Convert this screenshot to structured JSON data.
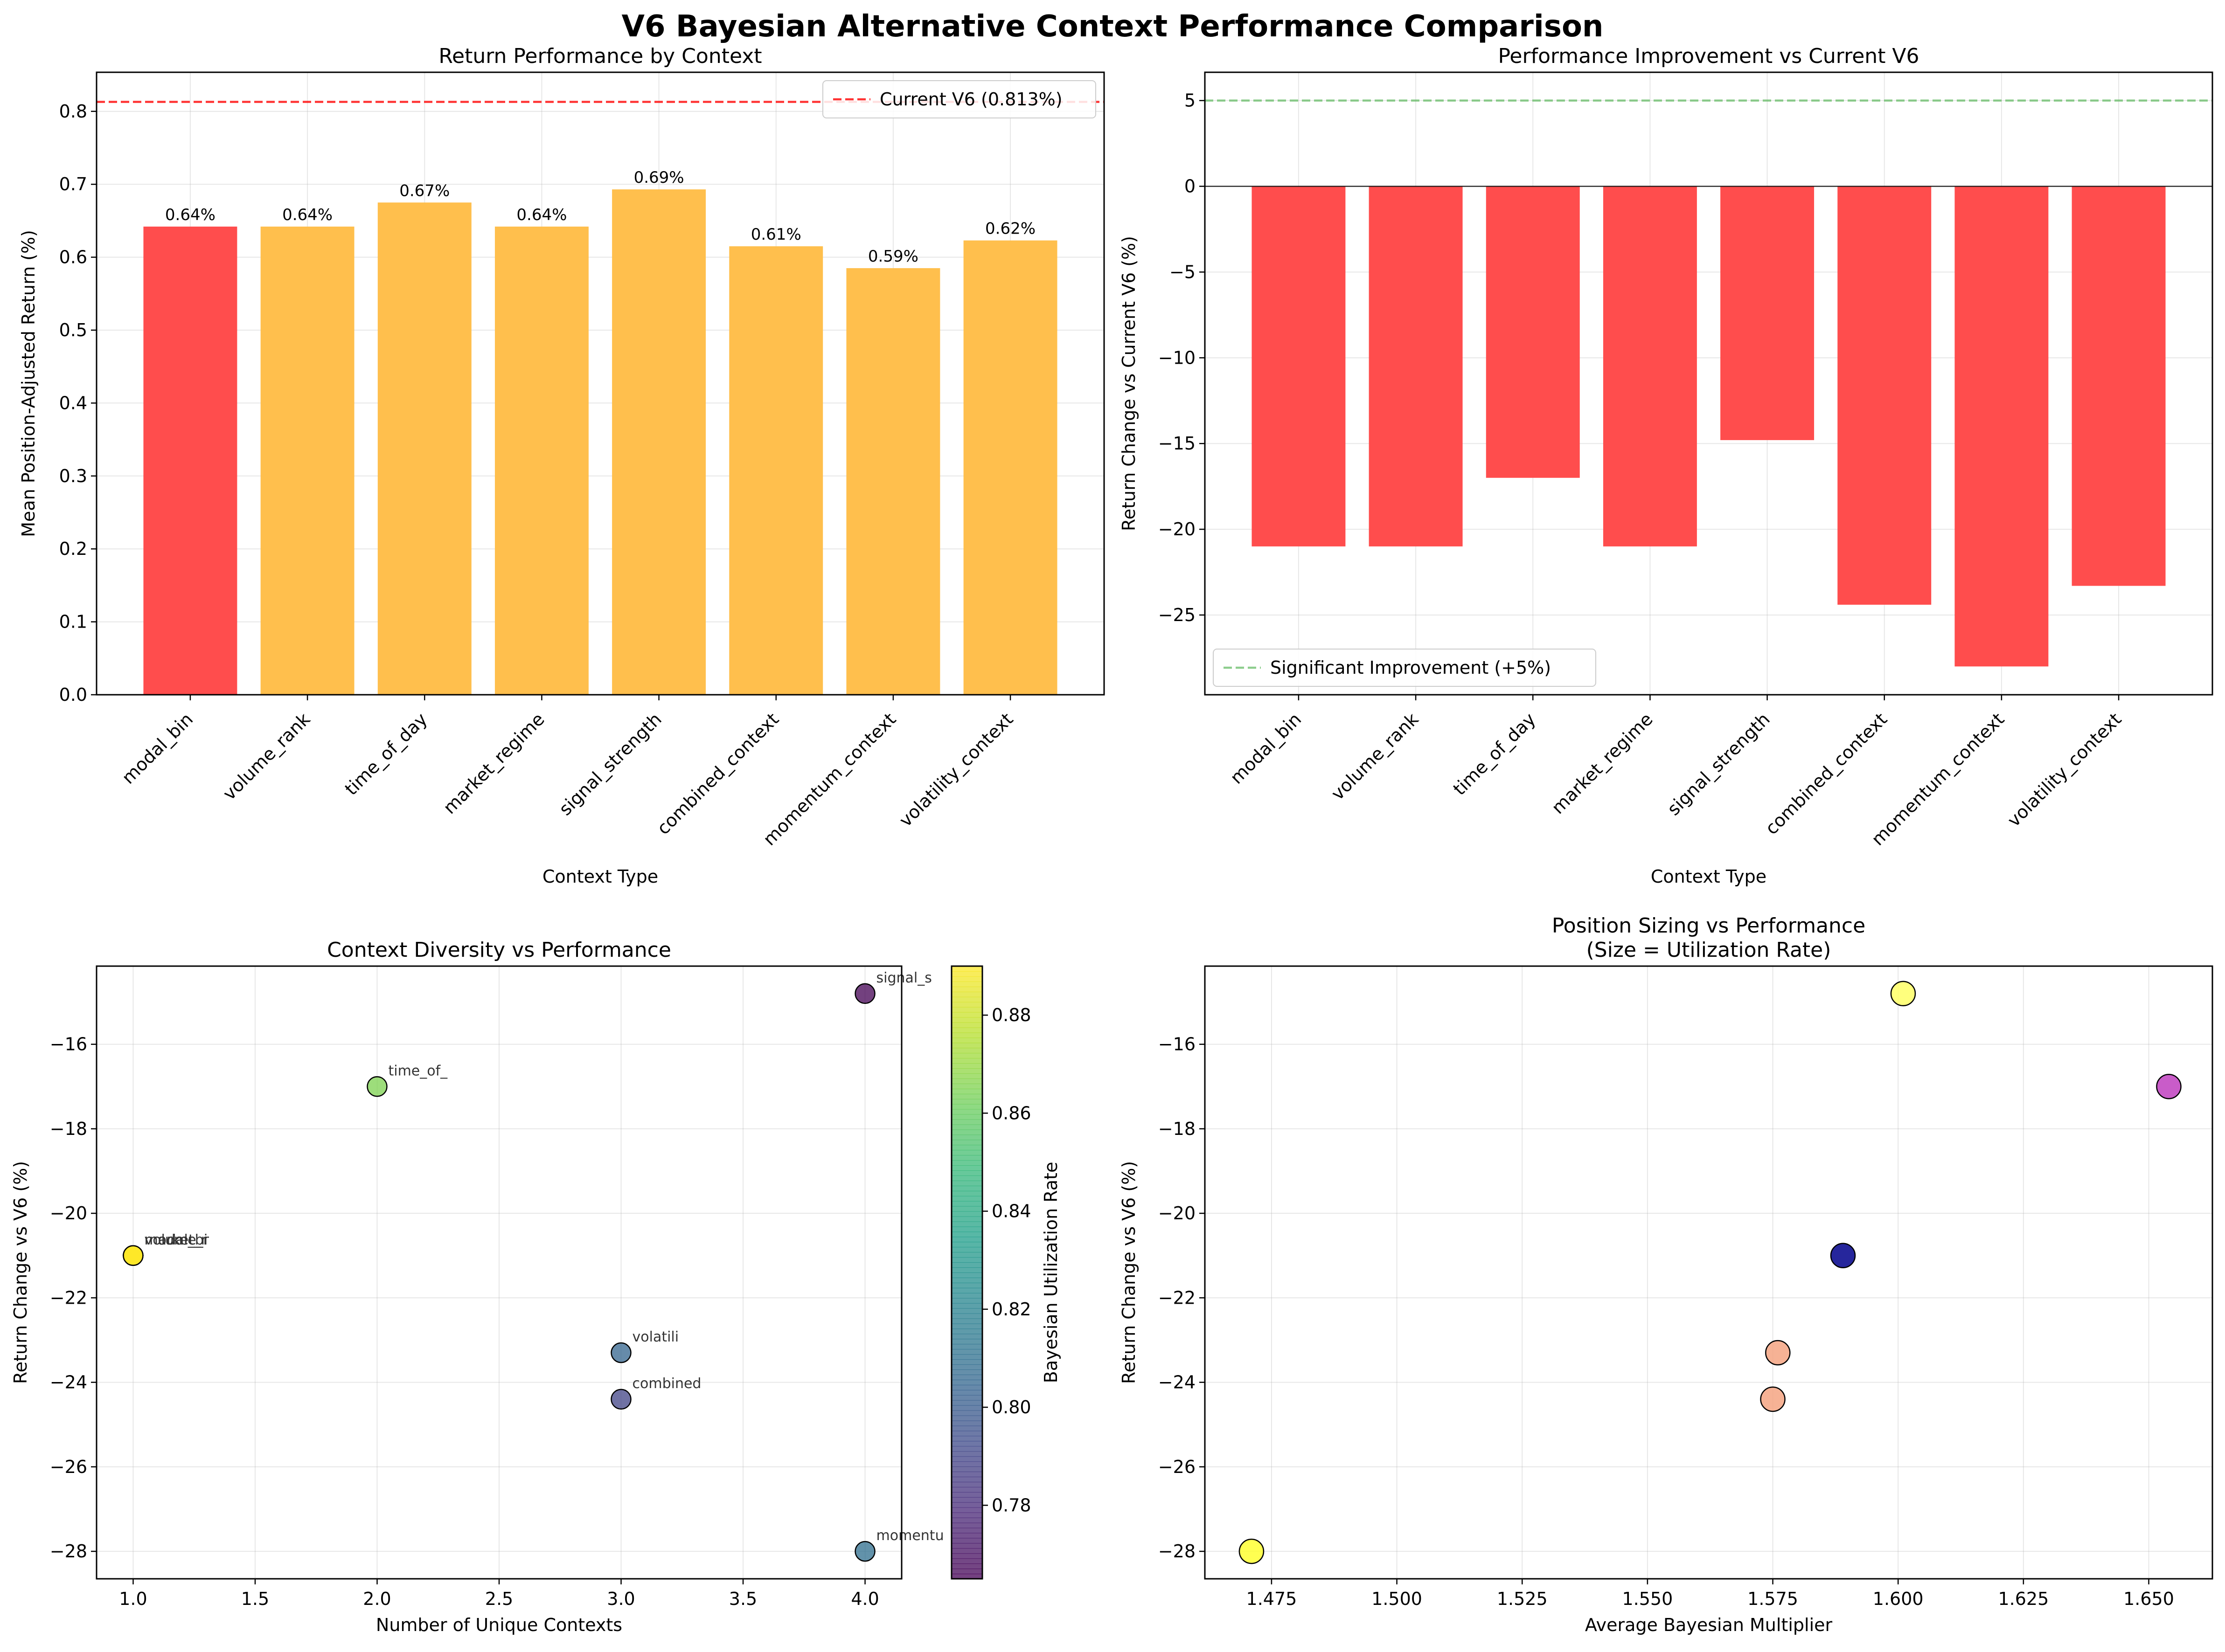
{
  "suptitle": "V6 Bayesian Alternative Context Performance Comparison",
  "colors": {
    "baseline_red": "#ff4d4d",
    "alt_orange": "#ffbf4d",
    "current_line": "#ff0000",
    "improvement_line": "#5cb85c"
  },
  "chart_data": [
    {
      "id": "p1",
      "type": "bar",
      "title": "Return Performance by Context",
      "xlabel": "Context Type",
      "ylabel": "Mean Position-Adjusted Return (%)",
      "categories": [
        "modal_bin",
        "volume_rank",
        "time_of_day",
        "market_regime",
        "signal_strength",
        "combined_context",
        "momentum_context",
        "volatility_context"
      ],
      "values": [
        0.642,
        0.642,
        0.675,
        0.642,
        0.693,
        0.615,
        0.585,
        0.623
      ],
      "value_labels": [
        "0.64%",
        "0.64%",
        "0.67%",
        "0.64%",
        "0.69%",
        "0.61%",
        "0.59%",
        "0.62%"
      ],
      "bar_colors": [
        "#ff4d4d",
        "#ffbf4d",
        "#ffbf4d",
        "#ffbf4d",
        "#ffbf4d",
        "#ffbf4d",
        "#ffbf4d",
        "#ffbf4d"
      ],
      "ylim": [
        0,
        0.8536
      ],
      "yticks": [
        0.0,
        0.1,
        0.2,
        0.3,
        0.4,
        0.5,
        0.6,
        0.7,
        0.8
      ],
      "ytick_labels": [
        "0.0",
        "0.1",
        "0.2",
        "0.3",
        "0.4",
        "0.5",
        "0.6",
        "0.7",
        "0.8"
      ],
      "reference_line": {
        "value": 0.813,
        "label": "Current V6 (0.813%)"
      },
      "legend": "top-right",
      "grid": true
    },
    {
      "id": "p2",
      "type": "bar",
      "title": "Performance Improvement vs Current V6",
      "xlabel": "Context Type",
      "ylabel": "Return Change vs Current V6 (%)",
      "categories": [
        "modal_bin",
        "volume_rank",
        "time_of_day",
        "market_regime",
        "signal_strength",
        "combined_context",
        "momentum_context",
        "volatility_context"
      ],
      "values": [
        -21.0,
        -21.0,
        -17.0,
        -21.0,
        -14.8,
        -24.4,
        -28.0,
        -23.3
      ],
      "ylim": [
        -29.65,
        6.65
      ],
      "yticks": [
        -25,
        -20,
        -15,
        -10,
        -5,
        0,
        5
      ],
      "ytick_labels": [
        "−25",
        "−20",
        "−15",
        "−10",
        "−5",
        "0",
        "5"
      ],
      "reference_line": {
        "value": 5,
        "label": "Significant Improvement (+5%)"
      },
      "zero_line": 0,
      "legend": "bottom-left",
      "grid": true
    },
    {
      "id": "p3",
      "type": "scatter",
      "title": "Context Diversity vs Performance",
      "xlabel": "Number of Unique Contexts",
      "ylabel": "Return Change vs V6 (%)",
      "xlim": [
        0.85,
        4.15
      ],
      "ylim": [
        -28.65,
        -14.15
      ],
      "xticks": [
        1.0,
        1.5,
        2.0,
        2.5,
        3.0,
        3.5,
        4.0
      ],
      "xtick_labels": [
        "1.0",
        "1.5",
        "2.0",
        "2.5",
        "3.0",
        "3.5",
        "4.0"
      ],
      "yticks": [
        -28,
        -26,
        -24,
        -22,
        -20,
        -18,
        -16
      ],
      "ytick_labels": [
        "−28",
        "−26",
        "−24",
        "−22",
        "−20",
        "−18",
        "−16"
      ],
      "points": [
        {
          "x": 1,
          "y": -21.0,
          "c": 0.89,
          "label": "modal_bi"
        },
        {
          "x": 1,
          "y": -21.0,
          "c": 0.89,
          "label": "volume_r"
        },
        {
          "x": 2,
          "y": -17.0,
          "c": 0.865,
          "label": "time_of_"
        },
        {
          "x": 1,
          "y": -21.0,
          "c": 0.89,
          "label": "market_r"
        },
        {
          "x": 4,
          "y": -14.8,
          "c": 0.765,
          "label": "signal_s"
        },
        {
          "x": 3,
          "y": -24.4,
          "c": 0.79,
          "label": "combined"
        },
        {
          "x": 4,
          "y": -28.0,
          "c": 0.81,
          "label": "momentu"
        },
        {
          "x": 3,
          "y": -23.3,
          "c": 0.805,
          "label": "volatili"
        }
      ],
      "colorbar": {
        "label": "Bayesian Utilization Rate",
        "range": [
          0.765,
          0.89
        ],
        "ticks": [
          0.78,
          0.8,
          0.82,
          0.84,
          0.86,
          0.88
        ],
        "tick_labels": [
          "0.78",
          "0.80",
          "0.82",
          "0.84",
          "0.86",
          "0.88"
        ],
        "colormap": "viridis"
      },
      "grid": true
    },
    {
      "id": "p4",
      "type": "scatter",
      "title": "Position Sizing vs Performance",
      "subtitle": "(Size = Utilization Rate)",
      "xlabel": "Average Bayesian Multiplier",
      "ylabel": "Return Change vs V6 (%)",
      "xlim": [
        1.4617,
        1.6627
      ],
      "ylim": [
        -28.65,
        -14.15
      ],
      "xticks": [
        1.475,
        1.5,
        1.525,
        1.55,
        1.575,
        1.6,
        1.625,
        1.65
      ],
      "xtick_labels": [
        "1.475",
        "1.500",
        "1.525",
        "1.550",
        "1.575",
        "1.600",
        "1.625",
        "1.650"
      ],
      "yticks": [
        -28,
        -26,
        -24,
        -22,
        -20,
        -18,
        -16
      ],
      "ytick_labels": [
        "−28",
        "−26",
        "−24",
        "−22",
        "−20",
        "−18",
        "−16"
      ],
      "points": [
        {
          "x": 1.589,
          "y": -21.0,
          "color": "#00008b"
        },
        {
          "x": 1.654,
          "y": -17.0,
          "color": "#bf40bf"
        },
        {
          "x": 1.601,
          "y": -14.8,
          "color": "#ffff66"
        },
        {
          "x": 1.576,
          "y": -23.3,
          "color": "#f4a582"
        },
        {
          "x": 1.575,
          "y": -24.4,
          "color": "#f4a582"
        },
        {
          "x": 1.471,
          "y": -28.0,
          "color": "#ffff33"
        }
      ],
      "grid": true
    }
  ]
}
